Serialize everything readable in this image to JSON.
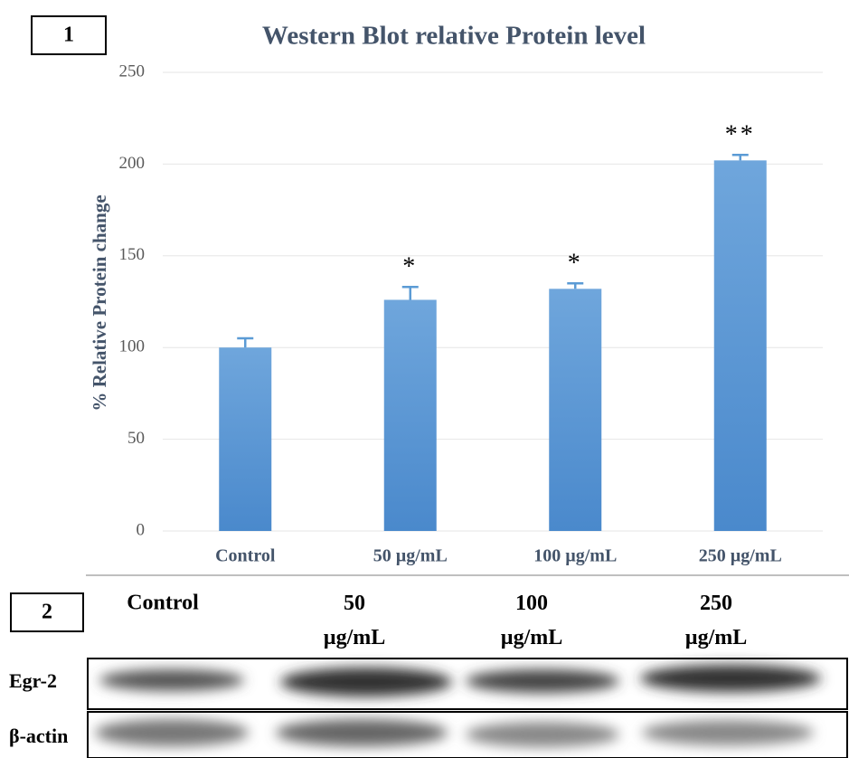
{
  "chart_data": {
    "type": "bar",
    "panel_label": "1",
    "title": "Western Blot relative Protein level",
    "y_label": "% Relative Protein change",
    "categories": [
      "Control",
      "50 µg/mL",
      "100 µg/mL",
      "250 µg/mL"
    ],
    "values": [
      100,
      126,
      132,
      202
    ],
    "errors": [
      5,
      7,
      3,
      3
    ],
    "annotations": [
      null,
      "*",
      "*",
      "**"
    ],
    "color": "#5b9bd5",
    "ylim": [
      0,
      250
    ],
    "yticks": [
      0,
      50,
      100,
      150,
      200,
      250
    ],
    "grid": true
  },
  "blot": {
    "panel_label": "2",
    "lanes": [
      "Control",
      "50 µg/mL",
      "100 µg/mL",
      "250 µg/mL"
    ],
    "rows": [
      "Egr-2",
      "β-actin"
    ]
  }
}
